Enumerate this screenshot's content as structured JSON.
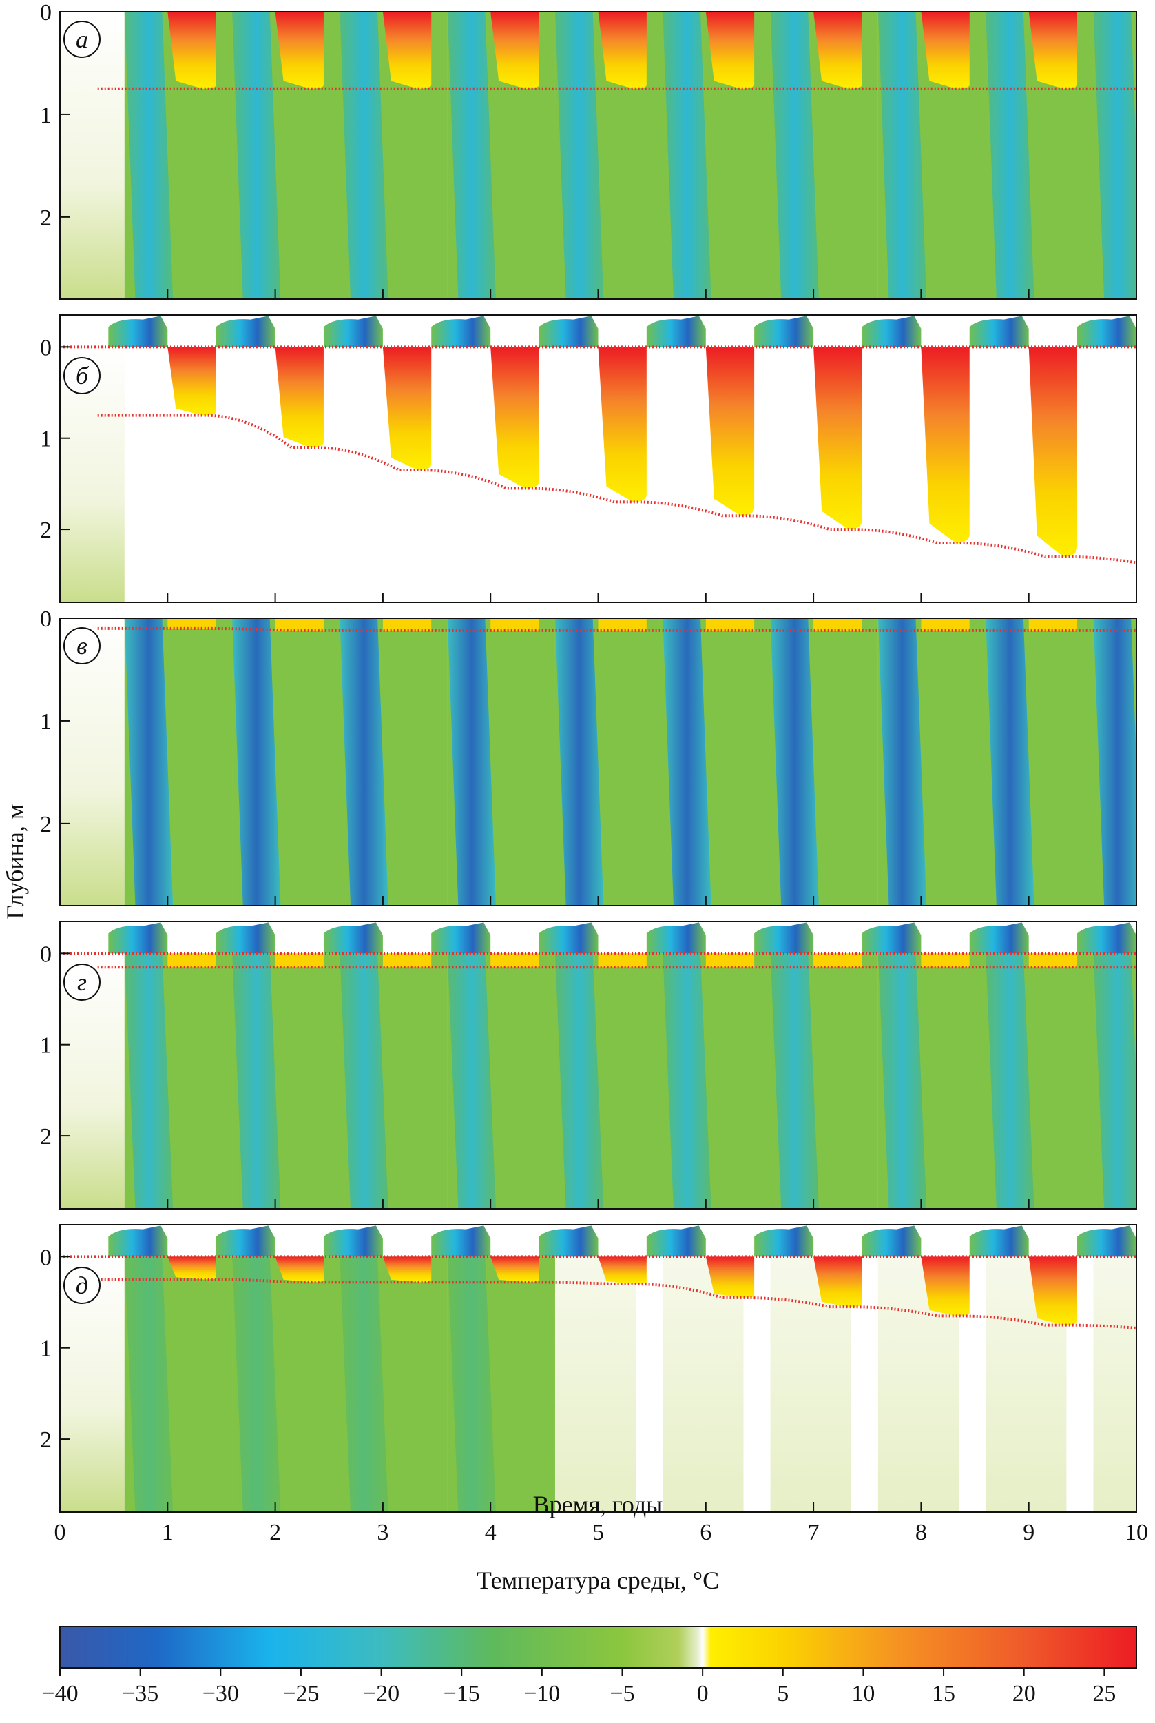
{
  "chart_data": [
    {
      "type": "heatmap",
      "panel_label": "а",
      "xlim": [
        0,
        10
      ],
      "ylim": [
        0,
        2.8
      ],
      "yticks": [
        "0",
        "1",
        "2"
      ],
      "summer_above_ground": false,
      "thaw_depth_m": [
        0.75,
        0.75,
        0.75,
        0.75,
        0.75,
        0.75,
        0.75,
        0.75,
        0.75,
        0.75
      ],
      "winter_min_temp_c": -24
    },
    {
      "type": "heatmap",
      "panel_label": "б",
      "xlim": [
        0,
        10
      ],
      "ylim": [
        -0.35,
        2.8
      ],
      "yticks": [
        "0",
        "1",
        "2"
      ],
      "summer_above_ground": true,
      "thaw_depth_m": [
        0.75,
        1.1,
        1.35,
        1.55,
        1.7,
        1.85,
        2.0,
        2.15,
        2.3,
        2.4
      ],
      "winter_min_temp_c": -35
    },
    {
      "type": "heatmap",
      "panel_label": "в",
      "xlim": [
        0,
        10
      ],
      "ylim": [
        0,
        2.8
      ],
      "yticks": [
        "0",
        "1",
        "2"
      ],
      "summer_above_ground": false,
      "thaw_depth_m": [
        0.1,
        0.12,
        0.12,
        0.12,
        0.12,
        0.12,
        0.12,
        0.12,
        0.12,
        0.12
      ],
      "winter_min_temp_c": -35
    },
    {
      "type": "heatmap",
      "panel_label": "г",
      "xlim": [
        0,
        10
      ],
      "ylim": [
        -0.35,
        2.8
      ],
      "yticks": [
        "0",
        "1",
        "2"
      ],
      "summer_above_ground": true,
      "thaw_depth_m": [
        0.15,
        0.15,
        0.15,
        0.15,
        0.15,
        0.15,
        0.15,
        0.15,
        0.15,
        0.15
      ],
      "winter_min_temp_c": -22
    },
    {
      "type": "heatmap",
      "panel_label": "д",
      "xlim": [
        0,
        10
      ],
      "ylim": [
        -0.35,
        2.8
      ],
      "yticks": [
        "0",
        "1",
        "2"
      ],
      "summer_above_ground": true,
      "thaw_depth_m": [
        0.25,
        0.28,
        0.28,
        0.28,
        0.3,
        0.45,
        0.55,
        0.65,
        0.75,
        0.8
      ],
      "winter_min_temp_c": -15
    }
  ],
  "ylabel": "Глубина, м",
  "xlabel": "Время, годы",
  "xticks": [
    "0",
    "1",
    "2",
    "3",
    "4",
    "5",
    "6",
    "7",
    "8",
    "9",
    "10"
  ],
  "colorbar": {
    "title": "Температура среды, °C",
    "min": -40,
    "max": 27,
    "ticks": [
      "−40",
      "−35",
      "−30",
      "−25",
      "−20",
      "−15",
      "−10",
      "−5",
      "0",
      "5",
      "10",
      "15",
      "20",
      "25"
    ],
    "tick_values": [
      -40,
      -35,
      -30,
      -25,
      -20,
      -15,
      -10,
      -5,
      0,
      5,
      10,
      15,
      20,
      25
    ],
    "stops": [
      {
        "t": -40,
        "color": "#3a58a8"
      },
      {
        "t": -34,
        "color": "#1f68c6"
      },
      {
        "t": -27,
        "color": "#1ab3ec"
      },
      {
        "t": -20,
        "color": "#3dbcc0"
      },
      {
        "t": -13,
        "color": "#5fba5c"
      },
      {
        "t": -5,
        "color": "#8cc63e"
      },
      {
        "t": -1.5,
        "color": "#b0cf5a"
      },
      {
        "t": -0.3,
        "color": "#e6efcf"
      },
      {
        "t": 0,
        "color": "#ffffff"
      },
      {
        "t": 0.5,
        "color": "#ffef00"
      },
      {
        "t": 5,
        "color": "#fbd300"
      },
      {
        "t": 12,
        "color": "#f59422"
      },
      {
        "t": 20,
        "color": "#ef5a2a"
      },
      {
        "t": 27,
        "color": "#ed1c24"
      }
    ]
  },
  "colors": {
    "front_line": "#e8302e",
    "frame": "#111111"
  }
}
